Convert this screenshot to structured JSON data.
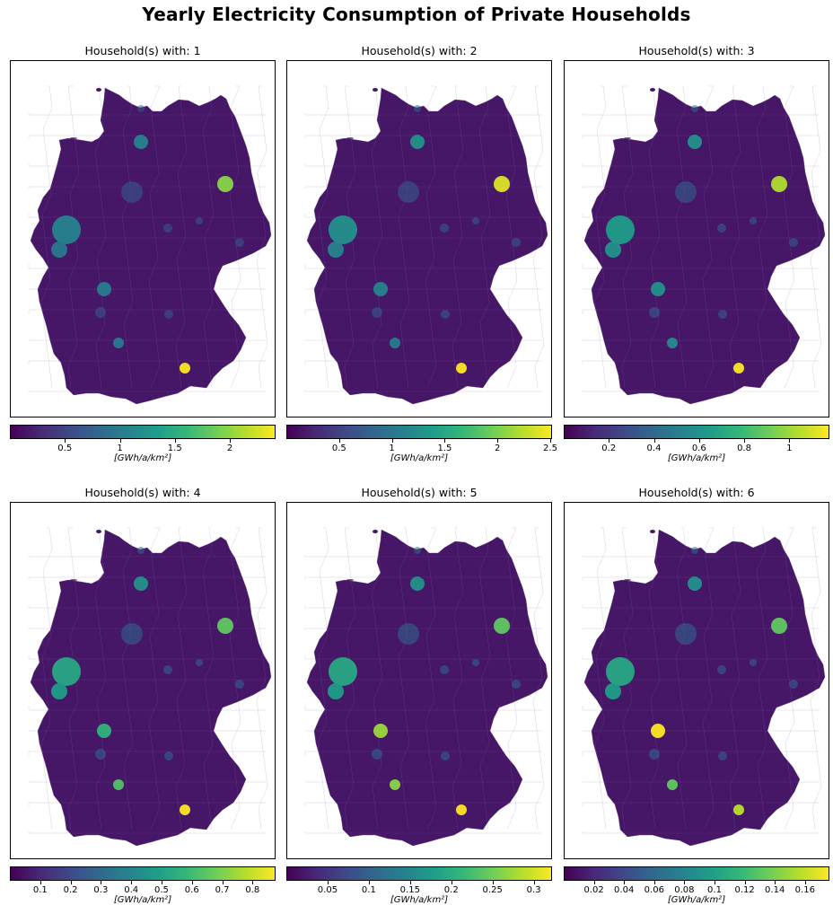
{
  "title": "Yearly Electricity Consumption of Private Households",
  "colormap": [
    "#440154",
    "#482878",
    "#3e4989",
    "#31688e",
    "#26828e",
    "#1f9e89",
    "#35b779",
    "#6ece58",
    "#b5de2b",
    "#fde725"
  ],
  "panels": [
    {
      "title": "Household(s) with: 1",
      "unit": "[GWh/a/km²]",
      "range": [
        0.0,
        2.4
      ],
      "ticks": [
        {
          "label": "0.5",
          "value": 0.5
        },
        {
          "label": "1",
          "value": 1
        },
        {
          "label": "1.5",
          "value": 1.5
        },
        {
          "label": "2",
          "value": 2
        }
      ],
      "hotspots": {
        "berlin": 0.82,
        "munich": 1.0,
        "hamburg": 0.45,
        "ruhr": 0.45,
        "frankfurt": 0.42,
        "stuttgart": 0.4,
        "cologne": 0.4,
        "other": 0.3
      }
    },
    {
      "title": "Household(s) with: 2",
      "unit": "[GWh/a/km²]",
      "range": [
        0.0,
        2.5
      ],
      "ticks": [
        {
          "label": "0.5",
          "value": 0.5
        },
        {
          "label": "1",
          "value": 1
        },
        {
          "label": "1.5",
          "value": 1.5
        },
        {
          "label": "2",
          "value": 2
        },
        {
          "label": "2.5",
          "value": 2.5
        }
      ],
      "hotspots": {
        "berlin": 0.95,
        "munich": 1.0,
        "hamburg": 0.5,
        "ruhr": 0.5,
        "frankfurt": 0.45,
        "stuttgart": 0.42,
        "cologne": 0.45,
        "other": 0.32
      }
    },
    {
      "title": "Household(s) with: 3",
      "unit": "[GWh/a/km²]",
      "range": [
        0.0,
        1.17
      ],
      "ticks": [
        {
          "label": "0.2",
          "value": 0.2
        },
        {
          "label": "0.4",
          "value": 0.4
        },
        {
          "label": "0.6",
          "value": 0.6
        },
        {
          "label": "0.8",
          "value": 0.8
        },
        {
          "label": "1",
          "value": 1
        }
      ],
      "hotspots": {
        "berlin": 0.88,
        "munich": 1.0,
        "hamburg": 0.5,
        "ruhr": 0.55,
        "frankfurt": 0.5,
        "stuttgart": 0.48,
        "cologne": 0.5,
        "other": 0.33
      }
    },
    {
      "title": "Household(s) with: 4",
      "unit": "[GWh/a/km²]",
      "range": [
        0.0,
        0.87
      ],
      "ticks": [
        {
          "label": "0.1",
          "value": 0.1
        },
        {
          "label": "0.2",
          "value": 0.2
        },
        {
          "label": "0.3",
          "value": 0.3
        },
        {
          "label": "0.4",
          "value": 0.4
        },
        {
          "label": "0.5",
          "value": 0.5
        },
        {
          "label": "0.6",
          "value": 0.6
        },
        {
          "label": "0.7",
          "value": 0.7
        },
        {
          "label": "0.8",
          "value": 0.8
        }
      ],
      "hotspots": {
        "berlin": 0.75,
        "munich": 1.0,
        "hamburg": 0.5,
        "ruhr": 0.6,
        "frankfurt": 0.65,
        "stuttgart": 0.72,
        "cologne": 0.55,
        "other": 0.35
      }
    },
    {
      "title": "Household(s) with: 5",
      "unit": "[GWh/a/km²]",
      "range": [
        0.0,
        0.32
      ],
      "ticks": [
        {
          "label": "0.05",
          "value": 0.05
        },
        {
          "label": "0.1",
          "value": 0.1
        },
        {
          "label": "0.15",
          "value": 0.15
        },
        {
          "label": "0.2",
          "value": 0.2
        },
        {
          "label": "0.25",
          "value": 0.25
        },
        {
          "label": "0.3",
          "value": 0.3
        }
      ],
      "hotspots": {
        "berlin": 0.75,
        "munich": 1.0,
        "hamburg": 0.5,
        "ruhr": 0.6,
        "frankfurt": 0.85,
        "stuttgart": 0.82,
        "cologne": 0.55,
        "other": 0.35
      }
    },
    {
      "title": "Household(s) with: 6",
      "unit": "[GWh/a/km²]",
      "range": [
        0.0,
        0.175
      ],
      "ticks": [
        {
          "label": "0.02",
          "value": 0.02
        },
        {
          "label": "0.04",
          "value": 0.04
        },
        {
          "label": "0.06",
          "value": 0.06
        },
        {
          "label": "0.08",
          "value": 0.08
        },
        {
          "label": "0.1",
          "value": 0.1
        },
        {
          "label": "0.12",
          "value": 0.12
        },
        {
          "label": "0.14",
          "value": 0.14
        },
        {
          "label": "0.16",
          "value": 0.16
        }
      ],
      "hotspots": {
        "berlin": 0.75,
        "munich": 0.9,
        "hamburg": 0.5,
        "ruhr": 0.6,
        "frankfurt": 1.0,
        "stuttgart": 0.75,
        "cologne": 0.55,
        "other": 0.35
      }
    }
  ]
}
